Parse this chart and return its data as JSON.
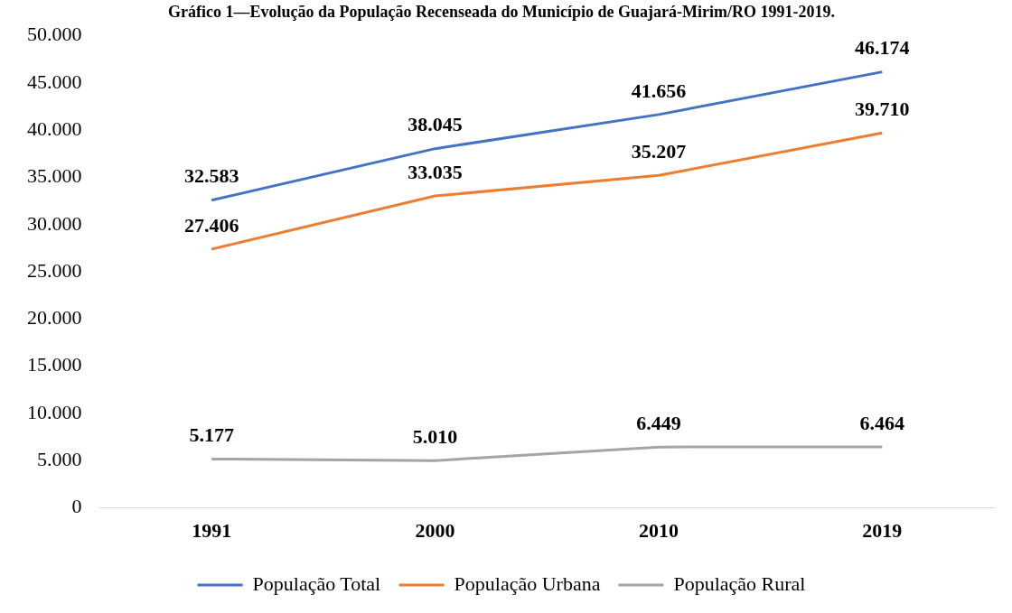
{
  "chart_data": {
    "type": "line",
    "title": "Gráfico 1—Evolução da População Recenseada do Município de Guajará-Mirim/RO 1991-2019.",
    "categories": [
      "1991",
      "2000",
      "2010",
      "2019"
    ],
    "series": [
      {
        "name": "População Total",
        "color": "#4472c4",
        "values": [
          32583,
          38045,
          41656,
          46174
        ],
        "value_labels": [
          "32.583",
          "38.045",
          "41.656",
          "46.174"
        ]
      },
      {
        "name": "População Urbana",
        "color": "#ed7d31",
        "values": [
          27406,
          33035,
          35207,
          39710
        ],
        "value_labels": [
          "27.406",
          "33.035",
          "35.207",
          "39.710"
        ]
      },
      {
        "name": "População Rural",
        "color": "#a5a5a5",
        "values": [
          5177,
          5010,
          6449,
          6464
        ],
        "value_labels": [
          "5.177",
          "5.010",
          "6.449",
          "6.464"
        ]
      }
    ],
    "ylim": [
      0,
      50000
    ],
    "yticks": [
      {
        "value": 0,
        "label": "0"
      },
      {
        "value": 5000,
        "label": "5.000"
      },
      {
        "value": 10000,
        "label": "10.000"
      },
      {
        "value": 15000,
        "label": "15.000"
      },
      {
        "value": 20000,
        "label": "20.000"
      },
      {
        "value": 25000,
        "label": "25.000"
      },
      {
        "value": 30000,
        "label": "30.000"
      },
      {
        "value": 35000,
        "label": "35.000"
      },
      {
        "value": 40000,
        "label": "40.000"
      },
      {
        "value": 45000,
        "label": "45.000"
      },
      {
        "value": 50000,
        "label": "50.000"
      }
    ],
    "grid": false,
    "legend": "bottom",
    "marker": "none",
    "line_style": "solid"
  }
}
